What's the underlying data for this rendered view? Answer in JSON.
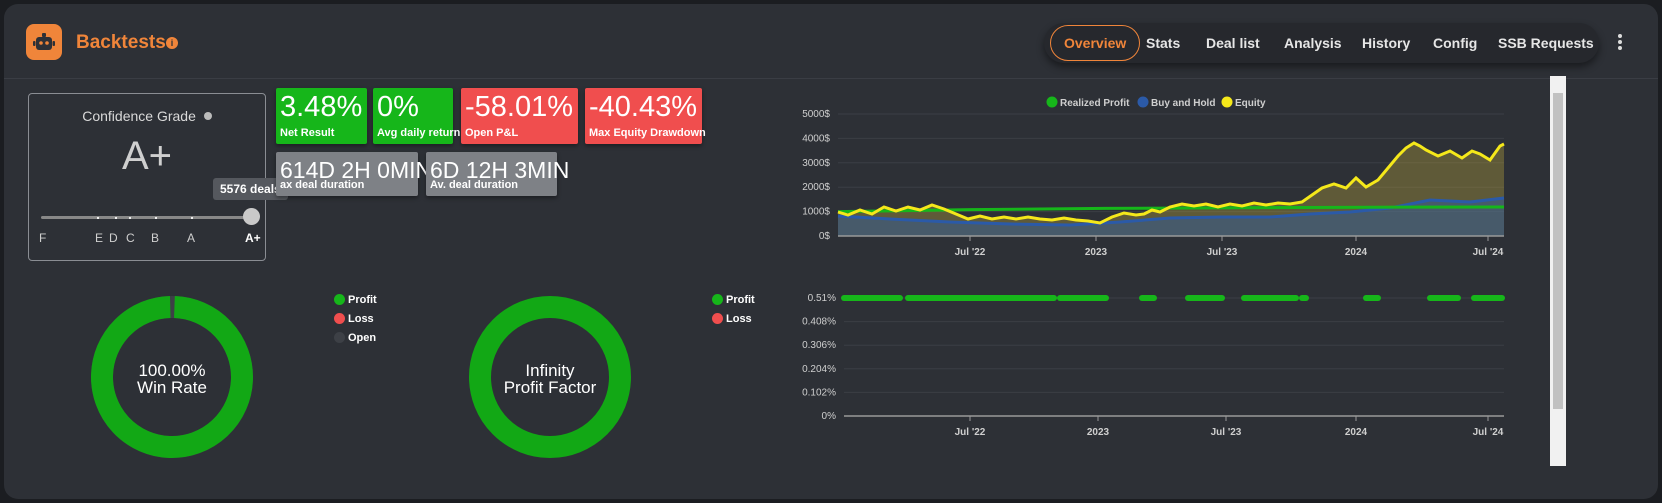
{
  "header": {
    "title": "Backtests",
    "info": "i",
    "tabs": [
      {
        "label": "Overview",
        "active": true
      },
      {
        "label": "Stats"
      },
      {
        "label": "Deal list"
      },
      {
        "label": "Analysis"
      },
      {
        "label": "History"
      },
      {
        "label": "Config"
      },
      {
        "label": "SSB Requests"
      }
    ]
  },
  "confidence": {
    "title": "Confidence Grade",
    "grade": "A+",
    "tooltip": "5576 deals",
    "labels": [
      "F",
      "E",
      "D",
      "C",
      "B",
      "A",
      "A+"
    ]
  },
  "stats": [
    {
      "value": "3.48%",
      "label": "Net Result",
      "color": "#16b61a"
    },
    {
      "value": "0%",
      "label": "Avg daily return",
      "color": "#16b61a"
    },
    {
      "value": "-58.01%",
      "label": "Open P&L",
      "color": "#f04e4e"
    },
    {
      "value": "-40.43%",
      "label": "Max Equity Drawdown",
      "color": "#f04e4e"
    },
    {
      "value": "614D 2H 0MIN",
      "label": "ax deal duration",
      "color": "#7e8186"
    },
    {
      "value": "6D 12H 3MIN",
      "label": "Av. deal duration",
      "color": "#7e8186"
    }
  ],
  "winrate": {
    "value": "100.00%",
    "label": "Win Rate",
    "legend": [
      "Profit",
      "Loss",
      "Open"
    ],
    "profit_fraction": 0.99
  },
  "profit_factor": {
    "value": "Infinity",
    "label": "Profit Factor",
    "legend": [
      "Profit",
      "Loss"
    ]
  },
  "colors": {
    "accent": "#f0853a",
    "profit": "#16b61a",
    "loss": "#f04e4e",
    "open": "#3d4046",
    "equity": "#f5e81a",
    "buyhold": "#2b5aa8"
  },
  "chart_data": [
    {
      "type": "line",
      "series": [
        {
          "name": "Realized Profit",
          "x": [
            "2021-12",
            "2022-06",
            "2023-01",
            "2023-07",
            "2024-01",
            "2024-07"
          ],
          "values": [
            1000,
            1080,
            1130,
            1160,
            1180,
            1190
          ]
        },
        {
          "name": "Buy and Hold",
          "x": [
            "2021-12",
            "2022-06",
            "2023-01",
            "2023-07",
            "2024-01",
            "2024-07"
          ],
          "values": [
            750,
            620,
            520,
            680,
            900,
            1450
          ]
        },
        {
          "name": "Equity",
          "x": [
            "2021-12",
            "2022-06",
            "2023-01",
            "2023-07",
            "2024-01",
            "2024-07"
          ],
          "values": [
            950,
            700,
            520,
            1050,
            1950,
            3850
          ]
        }
      ],
      "yticks": [
        "0$",
        "1000$",
        "2000$",
        "3000$",
        "4000$",
        "5000$"
      ],
      "xticks": [
        "Jul '22",
        "2023",
        "Jul '23",
        "2024",
        "Jul '24"
      ],
      "ylim": [
        0,
        5000
      ],
      "legend": "top"
    },
    {
      "type": "scatter",
      "yticks": [
        "0%",
        "0.102%",
        "0.204%",
        "0.306%",
        "0.408%",
        "0.51%"
      ],
      "xticks": [
        "Jul '22",
        "2023",
        "Jul '23",
        "2024",
        "Jul '24"
      ],
      "ylim": [
        0,
        0.51
      ],
      "series": [
        {
          "name": "Profit",
          "value": 0.51
        }
      ]
    }
  ]
}
